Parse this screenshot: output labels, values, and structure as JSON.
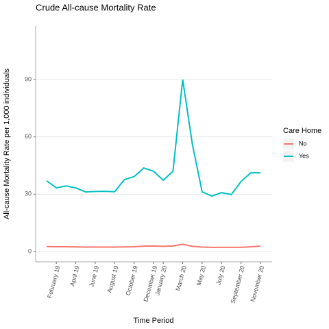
{
  "chart_data": {
    "type": "line",
    "title": "Crude All-cause Mortality Rate",
    "xlabel": "Time Period",
    "ylabel": "All-cause Mortality Rate per 1,000 individuals",
    "legend_title": "Care Home",
    "categories": [
      null,
      "February 19",
      null,
      "April 19",
      null,
      "June 19",
      null,
      "August 19",
      null,
      "October 19",
      null,
      "December 19",
      "January 20",
      null,
      "March 20",
      null,
      "May 20",
      null,
      "July 20",
      null,
      "September 20",
      null,
      "November 20"
    ],
    "series": [
      {
        "name": "No",
        "color": "#F8766D",
        "values": [
          2.6,
          2.5,
          2.5,
          2.4,
          2.3,
          2.3,
          2.3,
          2.3,
          2.4,
          2.5,
          2.8,
          2.9,
          2.7,
          2.9,
          3.8,
          2.7,
          2.3,
          2.2,
          2.2,
          2.2,
          2.2,
          2.5,
          2.8
        ]
      },
      {
        "name": "Yes",
        "color": "#00BFC4",
        "values": [
          37,
          33.3,
          34.3,
          33.3,
          31.2,
          31.4,
          31.5,
          31.3,
          37.6,
          39.2,
          43.7,
          42,
          37.3,
          42,
          90,
          56,
          31.2,
          29,
          30.8,
          29.8,
          36.6,
          41.2,
          41.2
        ]
      }
    ],
    "ylim": [
      -5.4,
      118
    ],
    "yticks": [
      0,
      30,
      60,
      90
    ],
    "grid": true,
    "legend": "right"
  }
}
